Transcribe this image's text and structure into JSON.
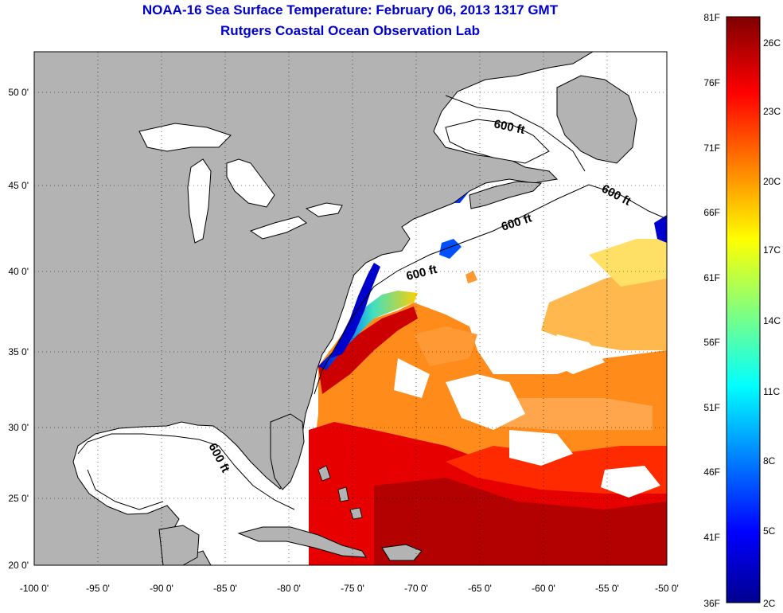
{
  "title": "NOAA-16 Sea Surface Temperature:  February 06, 2013 1317 GMT",
  "subtitle": "Rutgers Coastal Ocean Observation Lab",
  "lat_ticks": [
    "50 0'",
    "45 0'",
    "40 0'",
    "35 0'",
    "30 0'",
    "25 0'",
    "20 0'"
  ],
  "lon_ticks": [
    "-100 0'",
    "-95 0'",
    "-90 0'",
    "-85 0'",
    "-80 0'",
    "-75 0'",
    "-70 0'",
    "-65 0'",
    "-60 0'",
    "-55 0'",
    "-50 0'"
  ],
  "isobath_labels": [
    "600 ft",
    "600 ft",
    "600 ft",
    "600 ft",
    "600 ft"
  ],
  "colorbar": {
    "fahrenheit": [
      "81F",
      "76F",
      "71F",
      "66F",
      "61F",
      "56F",
      "51F",
      "46F",
      "41F",
      "36F"
    ],
    "celsius": [
      "26C",
      "23C",
      "20C",
      "17C",
      "14C",
      "11C",
      "8C",
      "5C",
      "2C"
    ],
    "colors": [
      "#7f0000",
      "#ff0000",
      "#ff8000",
      "#ffff00",
      "#80ff80",
      "#00ffff",
      "#0080ff",
      "#0000ff",
      "#00008f"
    ]
  },
  "colors": {
    "land": "#b3b3b3",
    "ocean": "#ffffff",
    "title": "#0000cc"
  }
}
